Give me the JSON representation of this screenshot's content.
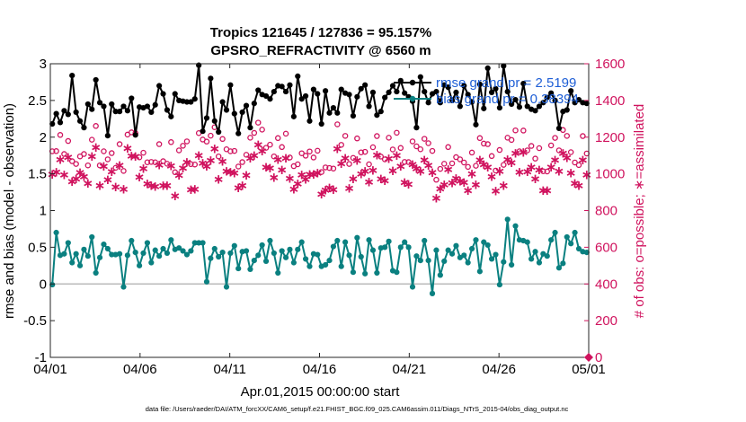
{
  "chart_data": {
    "type": "line",
    "title_line1": "Tropics 121645 / 127836 = 95.157%",
    "title_line2": "GPSRO_REFRACTIVITY @ 6560 m",
    "xlabel": "Apr.01,2015 00:00:00 start",
    "ylabel_left": "rmse and bias (model - observation)",
    "ylabel_right": "# of obs: o=possible; ∗=assimilated",
    "x_ticks": [
      {
        "day": 0,
        "label": "04/01"
      },
      {
        "day": 5,
        "label": "04/06"
      },
      {
        "day": 10,
        "label": "04/11"
      },
      {
        "day": 15,
        "label": "04/16"
      },
      {
        "day": 20,
        "label": "04/21"
      },
      {
        "day": 25,
        "label": "04/26"
      },
      {
        "day": 30,
        "label": "05/01"
      }
    ],
    "xlim": [
      0,
      30
    ],
    "ylim_left": [
      -1,
      3
    ],
    "ylim_right": [
      0,
      1600
    ],
    "yticks_left": [
      "-1",
      "-0.5",
      "0",
      "0.5",
      "1",
      "1.5",
      "2",
      "2.5",
      "3"
    ],
    "yticks_right": [
      "0",
      "200",
      "400",
      "600",
      "800",
      "1000",
      "1200",
      "1400",
      "1600"
    ],
    "legend": [
      {
        "name": "rmse grand pr = 2.5199",
        "color": "#000000"
      },
      {
        "name": "bias grand pr = 0.38394",
        "color": "#0a8080"
      }
    ],
    "colors": {
      "rmse": "#000000",
      "bias": "#0a8080",
      "obs": "#d0135e",
      "zero_line": "#bbbbbb"
    },
    "series": [
      {
        "name": "rmse",
        "values": [
          2.18,
          2.32,
          2.2,
          2.36,
          2.31,
          2.84,
          2.34,
          2.22,
          2.13,
          2.45,
          2.38,
          2.78,
          2.47,
          2.42,
          2.02,
          2.45,
          2.35,
          2.35,
          2.42,
          2.36,
          2.53,
          2.03,
          2.41,
          2.4,
          2.42,
          2.34,
          2.44,
          2.7,
          2.59,
          2.37,
          2.28,
          2.59,
          2.5,
          2.49,
          2.48,
          2.48,
          2.52,
          2.98,
          2.08,
          2.26,
          2.8,
          2.22,
          2.07,
          2.48,
          2.37,
          2.71,
          2.32,
          2.05,
          2.34,
          2.43,
          2.13,
          2.46,
          2.64,
          2.58,
          2.56,
          2.52,
          2.62,
          2.7,
          2.69,
          2.62,
          2.71,
          2.28,
          2.83,
          2.52,
          2.56,
          2.22,
          2.65,
          2.59,
          2.18,
          2.63,
          2.33,
          2.4,
          2.33,
          2.65,
          2.6,
          2.58,
          2.29,
          2.55,
          2.66,
          2.71,
          2.42,
          2.61,
          2.3,
          2.35,
          2.54,
          2.61,
          2.7,
          2.62,
          2.77,
          2.6,
          2.55,
          2.49,
          2.13,
          2.82,
          2.62,
          2.47,
          2.59,
          2.62,
          2.47,
          2.71,
          2.68,
          2.5,
          2.61,
          2.42,
          2.7,
          2.58,
          2.48,
          2.17,
          2.72,
          2.39,
          2.94,
          2.61,
          2.66,
          2.4,
          2.97,
          2.62,
          2.45,
          2.51,
          2.41,
          2.73,
          2.42,
          2.38,
          2.36,
          2.42,
          2.47,
          2.54,
          2.6,
          2.5,
          2.12,
          2.35,
          2.37,
          2.63,
          2.47,
          2.51,
          2.47,
          2.46
        ]
      },
      {
        "name": "bias",
        "values": [
          -0.01,
          0.7,
          0.39,
          0.41,
          0.56,
          0.29,
          0.41,
          0.25,
          0.47,
          0.38,
          0.64,
          0.15,
          0.36,
          0.54,
          0.48,
          0.4,
          0.4,
          0.41,
          -0.04,
          0.39,
          0.59,
          0.43,
          0.25,
          0.42,
          0.56,
          0.29,
          0.46,
          0.38,
          0.48,
          0.42,
          0.6,
          0.47,
          0.49,
          0.45,
          0.4,
          0.45,
          0.56,
          0.56,
          0.56,
          0.03,
          0.35,
          0.48,
          0.37,
          0.43,
          -0.04,
          0.42,
          0.52,
          0.21,
          0.44,
          0.45,
          0.2,
          0.32,
          0.39,
          0.53,
          0.31,
          0.59,
          0.42,
          0.15,
          0.45,
          0.36,
          0.47,
          0.29,
          0.47,
          0.57,
          0.34,
          0.24,
          0.41,
          0.4,
          0.24,
          0.26,
          0.32,
          0.51,
          0.59,
          0.24,
          0.57,
          0.39,
          0.16,
          0.63,
          0.37,
          0.14,
          0.6,
          0.46,
          0.15,
          0.49,
          0.5,
          0.58,
          0.18,
          0.16,
          0.5,
          0.57,
          0.5,
          -0.04,
          0.38,
          0.32,
          0.59,
          0.32,
          -0.13,
          0.46,
          0.12,
          0.31,
          0.46,
          0.41,
          0.52,
          0.36,
          0.39,
          0.29,
          0.48,
          0.6,
          0.17,
          0.57,
          0.53,
          0.34,
          0.4,
          -0.01,
          0.3,
          0.88,
          0.26,
          0.79,
          0.6,
          0.59,
          0.57,
          0.34,
          0.44,
          0.29,
          0.41,
          0.38,
          0.6,
          0.7,
          0.22,
          0.28,
          0.64,
          0.55,
          0.7,
          0.48,
          0.44,
          0.43
        ]
      },
      {
        "name": "possible",
        "values": [
          1123,
          1124,
          1212,
          1108,
          1179,
          1069,
          1054,
          1095,
          1108,
          1046,
          1186,
          1261,
          1046,
          1123,
          1079,
          1113,
          1033,
          1162,
          1016,
          1214,
          1226,
          1222,
          1090,
          1115,
          1063,
          1065,
          1063,
          1162,
          1069,
          1055,
          1173,
          1009,
          1128,
          1153,
          1177,
          1053,
          1051,
          1222,
          1187,
          1176,
          1208,
          1254,
          1095,
          1190,
          1134,
          1123,
          1125,
          1040,
          1064,
          1104,
          1197,
          1223,
          1279,
          1241,
          1142,
          1159,
          1095,
          1195,
          1146,
          1219,
          1089,
          1042,
          1052,
          1112,
          1099,
          1122,
          1089,
          1126,
          1010,
          1035,
          1032,
          1029,
          1270,
          1158,
          1207,
          1054,
          1087,
          1193,
          1117,
          1120,
          1052,
          1145,
          1206,
          1094,
          1079,
          1197,
          1133,
          1224,
          1141,
          1065,
          1064,
          1177,
          1150,
          1134,
          1191,
          1167,
          1125,
          968,
          1027,
          1055,
          1146,
          1057,
          1091,
          1079,
          1062,
          1038,
          1116,
          1044,
          1195,
          1165,
          1162,
          1097,
          1018,
          1130,
          1049,
          1197,
          1185,
          1237,
          1123,
          1236,
          1128,
          1152,
          1083,
          1140,
          1014,
          1013,
          1155,
          1196,
          1128,
          1239,
          1207,
          1118,
          1062,
          1048,
          1206,
          1111
        ]
      },
      {
        "name": "assimilated",
        "values": [
          1004,
          1015,
          1083,
          1000,
          1095,
          964,
          978,
          1013,
          992,
          955,
          1100,
          1149,
          941,
          1047,
          974,
          1018,
          934,
          1052,
          923,
          1145,
          1103,
          1102,
          988,
          1034,
          951,
          942,
          937,
          1054,
          942,
          942,
          1049,
          886,
          999,
          1038,
          1070,
          921,
          923,
          1106,
          1064,
          1047,
          1078,
          1143,
          975,
          1075,
          1021,
          1015,
          1011,
          929,
          941,
          998,
          1092,
          1105,
          1164,
          1130,
          1041,
          1038,
          987,
          1083,
          1028,
          1092,
          981,
          922,
          951,
          1001,
          976,
          1002,
          1002,
          1010,
          895,
          917,
          929,
          920,
          1143,
          1062,
          1092,
          928,
          978,
          1080,
          1005,
          1020,
          962,
          1024,
          1109,
          978,
          969,
          1089,
          1023,
          1105,
          1046,
          959,
          950,
          1058,
          1035,
          1020,
          1082,
          1052,
          1012,
          874,
          925,
          946,
          1031,
          957,
          980,
          967,
          958,
          915,
          1006,
          947,
          1082,
          1058,
          1041,
          990,
          913,
          1019,
          942,
          1084,
          1066,
          1117,
          1016,
          1124,
          1017,
          1043,
          979,
          1028,
          915,
          914,
          1041,
          1081,
          1020,
          1119,
          1093,
          1011,
          955,
          943,
          1081,
          1000
        ]
      }
    ]
  },
  "footnote": "data file: /Users/raeder/DAI/ATM_forcXX/CAM6_setup/f.e21.FHIST_BGC.f09_025.CAM6assim.011/Diags_NTrS_2015-04/obs_diag_output.nc"
}
